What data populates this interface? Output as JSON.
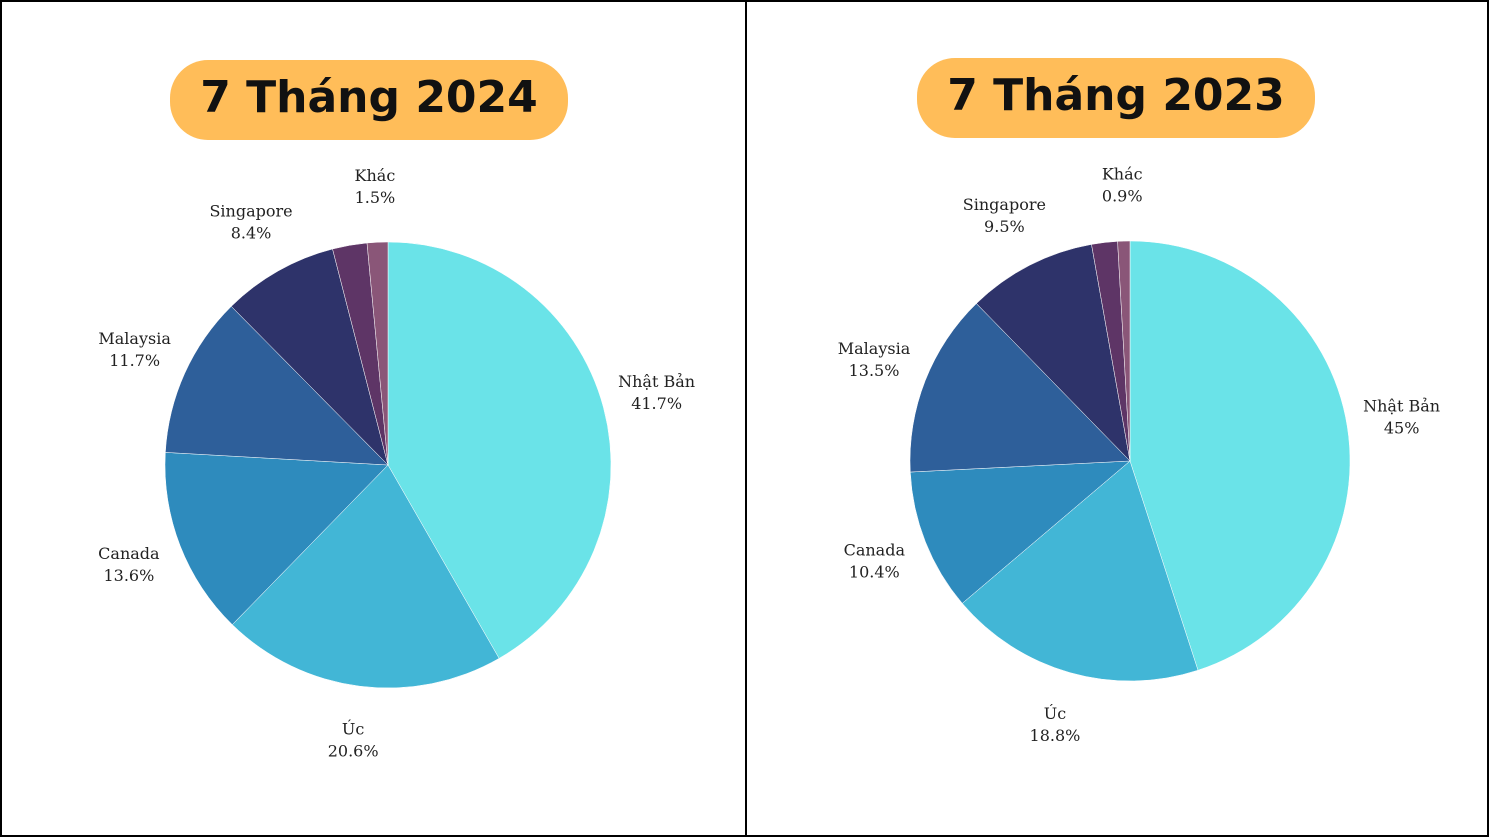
{
  "chart_data": [
    {
      "type": "pie",
      "title": "7 Tháng 2024",
      "categories": [
        "Nhật Bản",
        "Úc",
        "Canada",
        "Malaysia",
        "Singapore",
        null,
        "Khác"
      ],
      "values": [
        41.7,
        20.6,
        13.6,
        11.7,
        8.4,
        2.5,
        1.5
      ],
      "value_labels": [
        "41.7%",
        "20.6%",
        "13.6%",
        "11.7%",
        "8.4%",
        null,
        "1.5%"
      ],
      "colors": [
        "#6ae3e8",
        "#42b6d6",
        "#2e8bbd",
        "#2e5f9a",
        "#2e336a",
        "#5e3566",
        "#8a5678"
      ]
    },
    {
      "type": "pie",
      "title": "7 Tháng 2023",
      "categories": [
        "Nhật Bản",
        "Úc",
        "Canada",
        "Malaysia",
        "Singapore",
        null,
        "Khác"
      ],
      "values": [
        45,
        18.8,
        10.4,
        13.5,
        9.5,
        1.9,
        0.9
      ],
      "value_labels": [
        "45%",
        "18.8%",
        "10.4%",
        "13.5%",
        "9.5%",
        null,
        "0.9%"
      ],
      "colors": [
        "#6ae3e8",
        "#42b6d6",
        "#2e8bbd",
        "#2e5f9a",
        "#2e336a",
        "#5e3566",
        "#8a5678"
      ]
    }
  ]
}
